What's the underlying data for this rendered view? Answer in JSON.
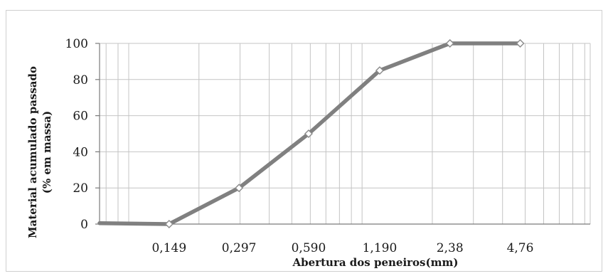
{
  "chart_data": {
    "type": "line",
    "title": "",
    "xlabel": "Abertura dos peneiros(mm)",
    "ylabel_lines": [
      "Material acumulado passado",
      "(% em massa)"
    ],
    "x_scale": "log",
    "x_tick_labels": [
      "0,149",
      "0,297",
      "0,590",
      "1,190",
      "2,38",
      "4,76"
    ],
    "x_tick_values": [
      0.149,
      0.297,
      0.59,
      1.19,
      2.38,
      4.76
    ],
    "xlim": [
      0.075,
      9.5
    ],
    "ylim": [
      0,
      100
    ],
    "y_ticks": [
      0,
      20,
      40,
      60,
      80,
      100
    ],
    "grid": true,
    "series": [
      {
        "color": "#808080",
        "x": [
          0.075,
          0.149,
          0.297,
          0.59,
          1.19,
          2.38,
          4.76
        ],
        "y": [
          0.5,
          0,
          20,
          50,
          85,
          100,
          100
        ],
        "markers": [
          false,
          true,
          true,
          true,
          true,
          true,
          true
        ]
      }
    ]
  }
}
